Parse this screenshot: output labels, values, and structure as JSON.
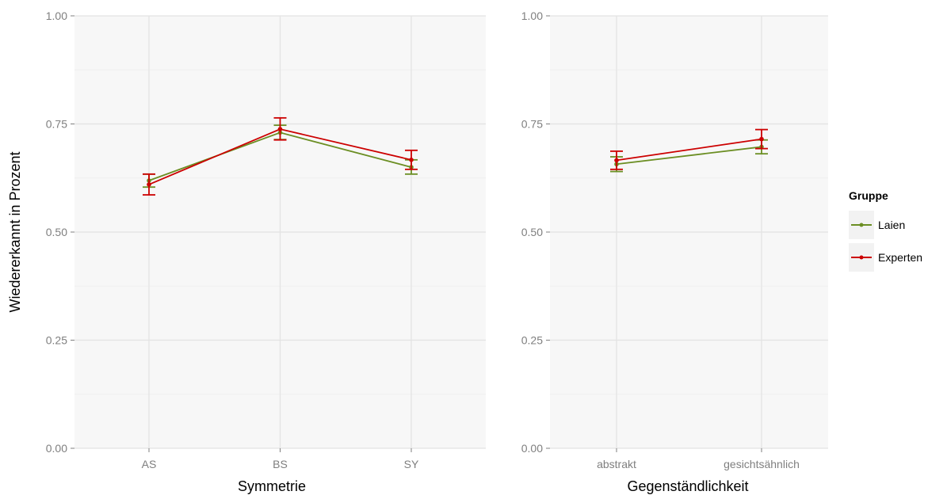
{
  "chart_data": [
    {
      "type": "line",
      "xlabel": "Symmetrie",
      "ylabel": "Wiedererkannt in Prozent",
      "ylim": [
        0,
        1
      ],
      "y_ticks": [
        "0.00",
        "0.25",
        "0.50",
        "0.75",
        "1.00"
      ],
      "categories": [
        "AS",
        "BS",
        "SY"
      ],
      "grid": true,
      "series": [
        {
          "name": "Laien",
          "values": [
            0.619,
            0.73,
            0.65
          ],
          "error_low": [
            0.604,
            0.714,
            0.634
          ],
          "error_high": [
            0.634,
            0.747,
            0.667
          ]
        },
        {
          "name": "Experten",
          "values": [
            0.61,
            0.738,
            0.667
          ],
          "error_low": [
            0.586,
            0.713,
            0.645
          ],
          "error_high": [
            0.634,
            0.764,
            0.689
          ]
        }
      ]
    },
    {
      "type": "line",
      "xlabel": "Gegenständlichkeit",
      "ylabel": "",
      "ylim": [
        0,
        1
      ],
      "y_ticks": [
        "0.00",
        "0.25",
        "0.50",
        "0.75",
        "1.00"
      ],
      "categories": [
        "abstrakt",
        "gesichtsähnlich"
      ],
      "grid": true,
      "series": [
        {
          "name": "Laien",
          "values": [
            0.657,
            0.697
          ],
          "error_low": [
            0.64,
            0.681
          ],
          "error_high": [
            0.674,
            0.713
          ]
        },
        {
          "name": "Experten",
          "values": [
            0.666,
            0.715
          ],
          "error_low": [
            0.645,
            0.693
          ],
          "error_high": [
            0.687,
            0.737
          ]
        }
      ]
    }
  ],
  "legend": {
    "title": "Gruppe",
    "position": "right",
    "items": [
      {
        "label": "Laien",
        "color": "#6b8e23"
      },
      {
        "label": "Experten",
        "color": "#cc0000"
      }
    ]
  },
  "colors": {
    "panel_background": "#f7f7f7",
    "grid_major": "#e3e3e3",
    "grid_minor": "#efefef"
  }
}
